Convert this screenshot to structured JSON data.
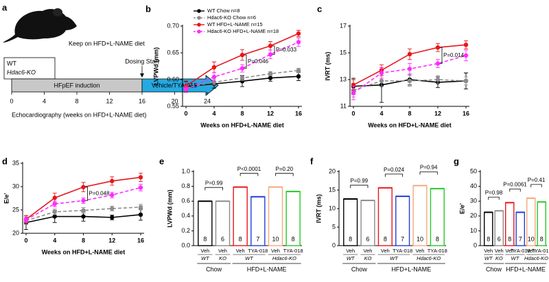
{
  "schematic": {
    "panel": "a",
    "note": "Keep on HFD+L-NAME diet",
    "genotypes": [
      "WT",
      "Hdac6-KO"
    ],
    "dosing": "Dosing Start",
    "phases": [
      "HFpEF induction",
      "Vehicle/TYA-018"
    ],
    "timeline_ticks": [
      0,
      4,
      8,
      12,
      16,
      20,
      24
    ],
    "timeline_label": "Echocardiography (weeks on HFD+L-NAME diet)"
  },
  "chart_data": [
    {
      "type": "line",
      "panel": "b",
      "ylabel": "LVPWd (mm)",
      "xlabel": "Weeks on HFD+L-NAME diet",
      "x": [
        0,
        4,
        8,
        12,
        16
      ],
      "xlim": [
        0,
        16
      ],
      "xticks": [
        0,
        4,
        8,
        12,
        16
      ],
      "ylim": [
        0.55,
        0.7
      ],
      "yticks": [
        0.55,
        {
          "value": 0.6,
          "label": "0.60"
        },
        0.65,
        {
          "value": 0.7,
          "label": "0.70"
        }
      ],
      "legend": "upper left",
      "series": [
        {
          "name": "WT Chow n=8",
          "color": "#000000",
          "dashed": false,
          "values": [
            0.587,
            0.592,
            0.597,
            0.603,
            0.606
          ],
          "errors": [
            0.01,
            0.008,
            0.01,
            0.006,
            0.008
          ]
        },
        {
          "name": "Hdac6-KO Chow n=6",
          "color": "#8c8c8c",
          "dashed": true,
          "values": [
            0.585,
            0.595,
            0.603,
            0.611,
            0.617
          ],
          "errors": [
            0.006,
            0.005,
            0.005,
            0.004,
            0.004
          ]
        },
        {
          "name": "WT HFD+L-NAME n=15",
          "color": "#e8161b",
          "dashed": false,
          "values": [
            0.588,
            0.623,
            0.646,
            0.663,
            0.686
          ],
          "errors": [
            0.008,
            0.01,
            0.01,
            0.008,
            0.006
          ]
        },
        {
          "name": "Hdac6-KO HFD+L-NAME n=18",
          "color": "#ff2bff",
          "dashed": true,
          "values": [
            0.582,
            0.605,
            0.621,
            0.647,
            0.67
          ],
          "errors": [
            0.006,
            0.008,
            0.007,
            0.008,
            0.008
          ]
        }
      ],
      "annotations": [
        {
          "text": "P=0.033",
          "x": 12
        },
        {
          "text": "P=0.046",
          "x": 8
        }
      ]
    },
    {
      "type": "line",
      "panel": "c",
      "ylabel": "IVRT (ms)",
      "xlabel": "Weeks on HFD+L-NAME diet",
      "x": [
        0,
        4,
        8,
        12,
        16
      ],
      "xlim": [
        0,
        16
      ],
      "xticks": [
        0,
        4,
        8,
        12,
        16
      ],
      "ylim": [
        11,
        17
      ],
      "yticks": [
        11,
        13,
        15,
        17
      ],
      "series": [
        {
          "color": "#000000",
          "dashed": false,
          "values": [
            12.5,
            12.6,
            13.0,
            12.8,
            12.9
          ],
          "errors": [
            0.6,
            1.3,
            0.4,
            0.4,
            0.6
          ]
        },
        {
          "color": "#8c8c8c",
          "dashed": true,
          "values": [
            12.2,
            12.9,
            12.9,
            13.0,
            12.9
          ],
          "errors": [
            0.5,
            0.4,
            0.4,
            0.3,
            0.3
          ]
        },
        {
          "color": "#e8161b",
          "dashed": false,
          "values": [
            12.6,
            13.7,
            14.9,
            15.4,
            15.6
          ],
          "errors": [
            0.4,
            0.4,
            0.4,
            0.3,
            0.3
          ]
        },
        {
          "color": "#ff2bff",
          "dashed": true,
          "values": [
            12.0,
            13.5,
            13.8,
            14.2,
            14.8
          ],
          "errors": [
            0.5,
            0.4,
            0.4,
            0.3,
            0.4
          ]
        }
      ],
      "annotations": [
        {
          "text": "P=0.014",
          "x": 12
        }
      ]
    },
    {
      "type": "line",
      "panel": "d",
      "ylabel": "E/e'",
      "xlabel": "Weeks on HFD+L-NAME diet",
      "x": [
        0,
        4,
        8,
        12,
        16
      ],
      "xlim": [
        0,
        16
      ],
      "xticks": [
        0,
        4,
        8,
        12,
        16
      ],
      "ylim": [
        20,
        35
      ],
      "yticks": [
        20,
        25,
        30,
        35
      ],
      "series": [
        {
          "color": "#000000",
          "dashed": false,
          "values": [
            22.3,
            23.6,
            23.6,
            23.4,
            24.0
          ],
          "errors": [
            1.5,
            1.3,
            1.0,
            0.5,
            1.2
          ]
        },
        {
          "color": "#8c8c8c",
          "dashed": true,
          "values": [
            22.7,
            24.6,
            24.9,
            25.3,
            25.6
          ],
          "errors": [
            0.8,
            0.6,
            0.6,
            0.5,
            0.6
          ]
        },
        {
          "color": "#e8161b",
          "dashed": false,
          "values": [
            23.0,
            27.6,
            29.9,
            31.2,
            32.0
          ],
          "errors": [
            0.8,
            1.0,
            1.0,
            0.9,
            0.9
          ]
        },
        {
          "color": "#ff2bff",
          "dashed": true,
          "values": [
            22.9,
            26.3,
            27.0,
            28.2,
            29.8
          ],
          "errors": [
            0.6,
            0.6,
            0.6,
            0.6,
            0.7
          ]
        }
      ],
      "annotations": [
        {
          "text": "P=0.048",
          "x": 8
        }
      ]
    },
    {
      "type": "bar",
      "panel": "e",
      "ylabel": "LVPWd (mm)",
      "categories": [
        "Veh",
        "Veh",
        "Veh",
        "TYA-018",
        "Veh",
        "TYA-018"
      ],
      "values": [
        0.6,
        0.6,
        0.79,
        0.66,
        0.79,
        0.73
      ],
      "n": [
        8,
        6,
        8,
        7,
        10,
        8
      ],
      "colors": [
        "#000000",
        "#8c8c8c",
        "#e8161b",
        "#1f3fd8",
        "#f5a878",
        "#26c926"
      ],
      "ylim": [
        0,
        1
      ],
      "yticks": [
        {
          "value": 0,
          "label": "0.0"
        },
        0.2,
        0.4,
        0.6,
        0.8,
        {
          "value": 1,
          "label": "1.0"
        }
      ],
      "subgroups": [
        {
          "label": "WT",
          "from": 0,
          "to": 0
        },
        {
          "label": "KO",
          "from": 1,
          "to": 1
        },
        {
          "label": "WT",
          "from": 2,
          "to": 3
        },
        {
          "label": "Hdac6-KO",
          "from": 4,
          "to": 5
        }
      ],
      "groups": [
        {
          "label": "Chow",
          "from": 0,
          "to": 1
        },
        {
          "label": "HFD+L-NAME",
          "from": 2,
          "to": 5
        }
      ],
      "annotations": [
        {
          "text": "P=0.99",
          "from": 0,
          "to": 1
        },
        {
          "text": "P<0.0001",
          "from": 2,
          "to": 3
        },
        {
          "text": "P=0.20",
          "from": 4,
          "to": 5
        }
      ]
    },
    {
      "type": "bar",
      "panel": "f",
      "ylabel": "IVRT (ms)",
      "categories": [
        "Veh",
        "Veh",
        "Veh",
        "TYA-018",
        "Veh",
        "TYA-018"
      ],
      "values": [
        12.6,
        12.2,
        15.6,
        13.3,
        16.2,
        15.4
      ],
      "n": [
        8,
        6,
        8,
        7,
        10,
        8
      ],
      "colors": [
        "#000000",
        "#8c8c8c",
        "#e8161b",
        "#1f3fd8",
        "#f5a878",
        "#26c926"
      ],
      "ylim": [
        0,
        20
      ],
      "yticks": [
        0,
        5,
        10,
        15,
        20
      ],
      "subgroups": [
        {
          "label": "WT",
          "from": 0,
          "to": 0
        },
        {
          "label": "KO",
          "from": 1,
          "to": 1
        },
        {
          "label": "WT",
          "from": 2,
          "to": 3
        },
        {
          "label": "Hdac6-KO",
          "from": 4,
          "to": 5
        }
      ],
      "groups": [
        {
          "label": "Chow",
          "from": 0,
          "to": 1
        },
        {
          "label": "HFD+L-NAME",
          "from": 2,
          "to": 5
        }
      ],
      "annotations": [
        {
          "text": "P=0.99",
          "from": 0,
          "to": 1
        },
        {
          "text": "P=0.024",
          "from": 2,
          "to": 3
        },
        {
          "text": "P=0.94",
          "from": 4,
          "to": 5
        }
      ]
    },
    {
      "type": "bar",
      "panel": "g",
      "ylabel": "E/e'",
      "categories": [
        "Veh",
        "Veh",
        "Veh",
        "TYA-018",
        "Veh",
        "TYA-018"
      ],
      "values": [
        22.5,
        23.5,
        29.0,
        22.5,
        32.0,
        29.5
      ],
      "n": [
        8,
        6,
        8,
        7,
        10,
        8
      ],
      "colors": [
        "#000000",
        "#8c8c8c",
        "#e8161b",
        "#1f3fd8",
        "#f5a878",
        "#26c926"
      ],
      "ylim": [
        0,
        50
      ],
      "yticks": [
        0,
        10,
        20,
        30,
        40,
        50
      ],
      "subgroups": [
        {
          "label": "WT",
          "from": 0,
          "to": 0
        },
        {
          "label": "KO",
          "from": 1,
          "to": 1
        },
        {
          "label": "WT",
          "from": 2,
          "to": 3
        },
        {
          "label": "Hdac6-KO",
          "from": 4,
          "to": 5
        }
      ],
      "groups": [
        {
          "label": "Chow",
          "from": 0,
          "to": 1
        },
        {
          "label": "HFD+L-NAME",
          "from": 2,
          "to": 5
        }
      ],
      "annotations": [
        {
          "text": "P=0.98",
          "from": 0,
          "to": 1
        },
        {
          "text": "P=0.0061",
          "from": 2,
          "to": 3
        },
        {
          "text": "P=0.41",
          "from": 4,
          "to": 5
        }
      ]
    }
  ]
}
